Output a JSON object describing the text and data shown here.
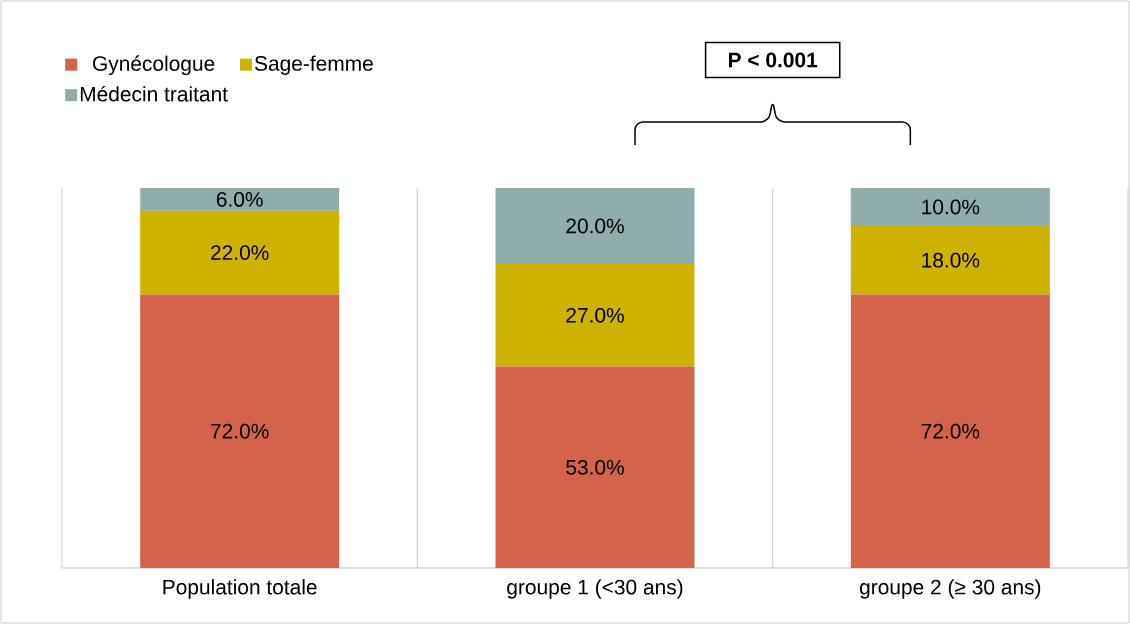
{
  "chart_data": {
    "type": "bar",
    "stacked": true,
    "categories": [
      "Population totale",
      "groupe 1 (<30 ans)",
      "groupe 2 (≥ 30 ans)"
    ],
    "series": [
      {
        "name": "Gynécologue",
        "color": "#d3644b",
        "values": [
          72,
          53,
          72
        ],
        "value_labels": [
          "72.0%",
          "53.0%",
          "72.0%"
        ]
      },
      {
        "name": "Sage-femme",
        "color": "#cdb200",
        "values": [
          22,
          27,
          18
        ],
        "value_labels": [
          "22.0%",
          "27.0%",
          "18.0%"
        ]
      },
      {
        "name": "Médecin traitant",
        "color": "#8eadac",
        "values": [
          6,
          20,
          10
        ],
        "value_labels": [
          "6.0%",
          "20.0%",
          "10.0%"
        ]
      }
    ],
    "annotations": [
      "P < 0.001"
    ],
    "grid": "x",
    "legend": "top left"
  }
}
